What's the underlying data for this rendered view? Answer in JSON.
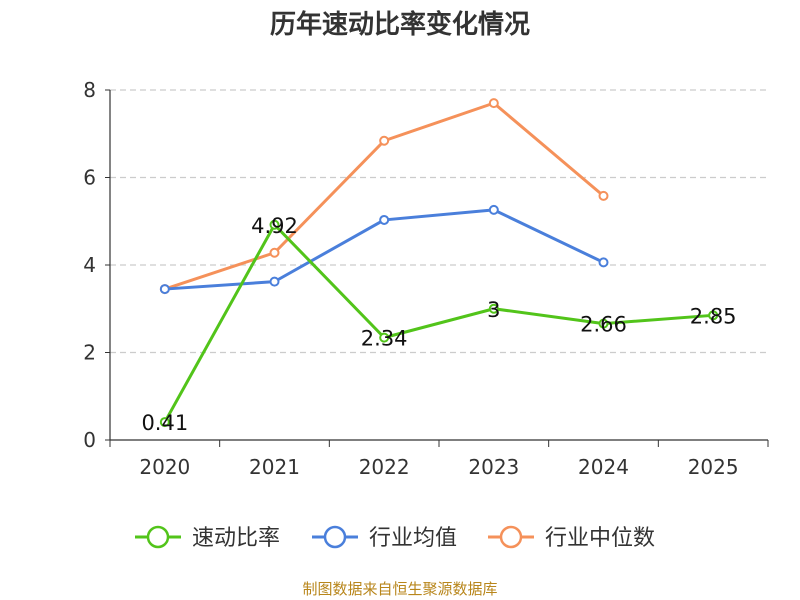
{
  "chart_data": {
    "type": "line",
    "title": "历年速动比率变化情况",
    "categories": [
      "2020",
      "2021",
      "2022",
      "2023",
      "2024",
      "2025"
    ],
    "ylim": [
      0,
      8
    ],
    "yticks": [
      0,
      2,
      4,
      6,
      8
    ],
    "grid": true,
    "legend_position": "bottom",
    "series": [
      {
        "name": "速动比率",
        "color": "#52c41a",
        "values": [
          0.41,
          4.92,
          2.34,
          3,
          2.66,
          2.85
        ],
        "labels": [
          "0.41",
          "4.92",
          "2.34",
          "3",
          "2.66",
          "2.85"
        ],
        "show_labels": true
      },
      {
        "name": "行业均值",
        "color": "#4a7fdb",
        "values": [
          3.45,
          3.62,
          5.03,
          5.26,
          4.06,
          null
        ],
        "show_labels": false
      },
      {
        "name": "行业中位数",
        "color": "#f5915a",
        "values": [
          3.45,
          4.28,
          6.84,
          7.7,
          5.58,
          null
        ],
        "show_labels": false
      }
    ]
  },
  "source": "制图数据来自恒生聚源数据库"
}
